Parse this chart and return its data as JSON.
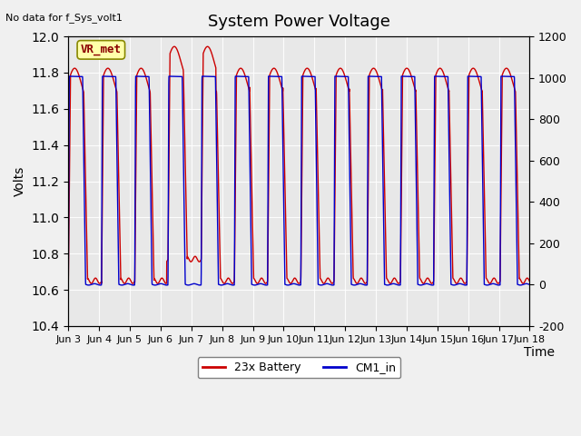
{
  "title": "System Power Voltage",
  "subtitle": "No data for f_Sys_volt1",
  "ylabel_left": "Volts",
  "xlabel": "Time",
  "ylim_left": [
    10.4,
    12.0
  ],
  "ylim_right": [
    -200,
    1200
  ],
  "background_color": "#e8e8e8",
  "plot_bg_color": "#e8e8e8",
  "line1_color": "#cc0000",
  "line2_color": "#0000cc",
  "line1_label": "23x Battery",
  "line2_label": "CM1_in",
  "annotation_text": "VR_met",
  "annotation_bg": "#ffffaa",
  "annotation_border": "#888800",
  "x_tick_labels": [
    "Jun 3",
    "Jun 4",
    "Jun 5",
    "Jun 6",
    "Jun 7",
    "Jun 8",
    "Jun 9",
    "Jun 10",
    "Jun 11",
    "Jun 12",
    "Jun 13",
    "Jun 14",
    "Jun 15",
    "Jun 16",
    "Jun 17",
    "Jun 18"
  ],
  "left_yticks": [
    10.4,
    10.6,
    10.8,
    11.0,
    11.2,
    11.4,
    11.6,
    11.8,
    12.0
  ],
  "right_yticks": [
    -200,
    0,
    200,
    400,
    600,
    800,
    1000,
    1200
  ],
  "right_ytick_labels": [
    "-200",
    "0",
    "200",
    "400",
    "600",
    "800",
    "1000",
    "1200"
  ]
}
